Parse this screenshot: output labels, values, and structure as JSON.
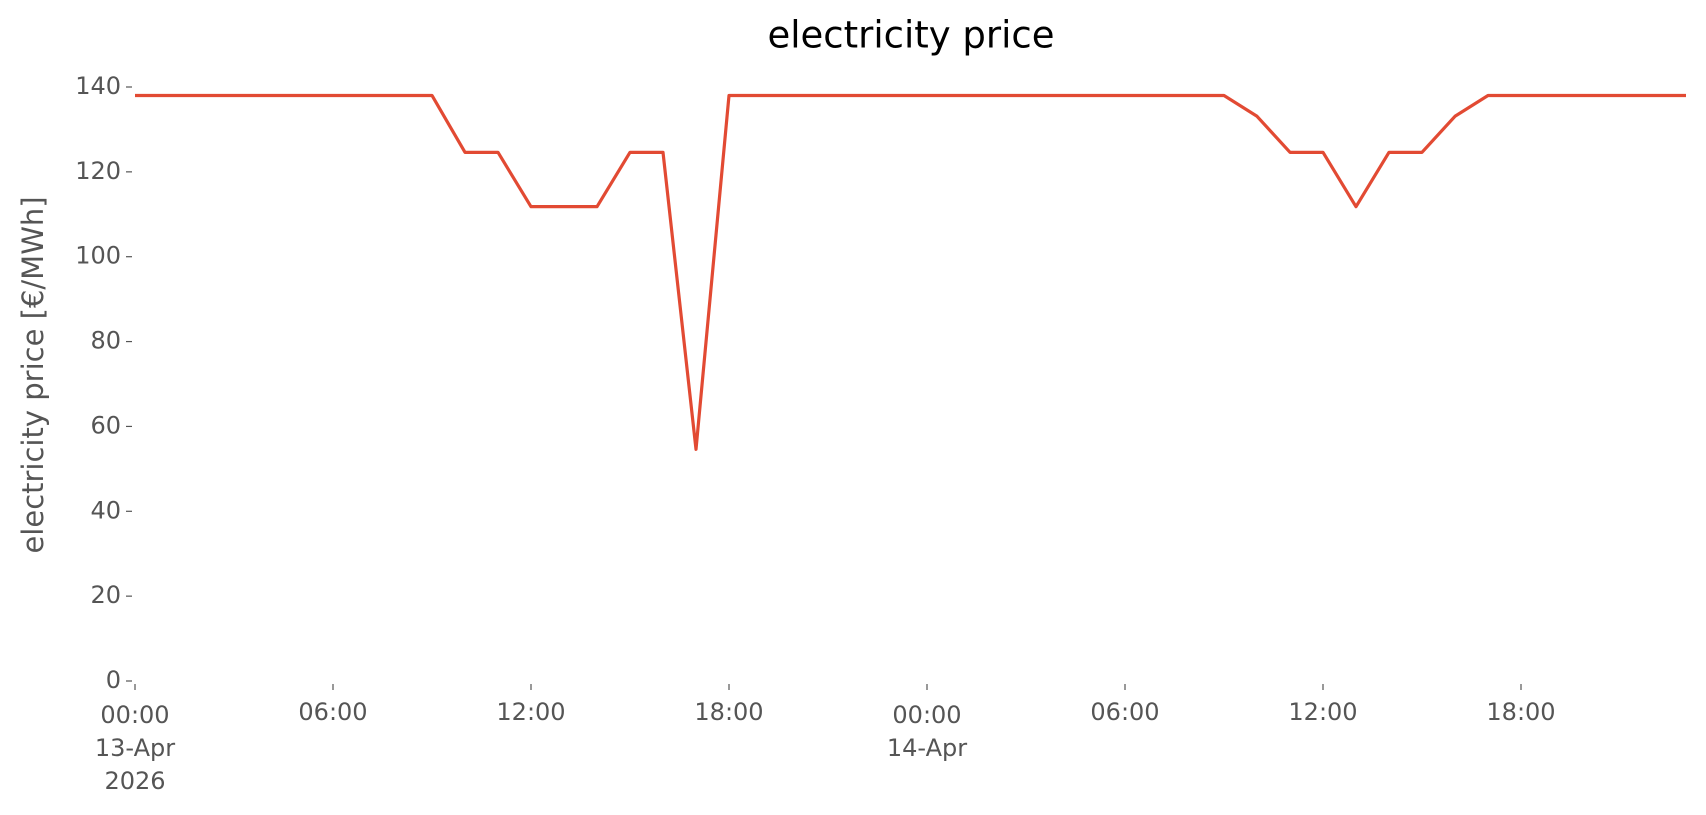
{
  "chart_data": {
    "type": "line",
    "title": "electricity price",
    "y_label": "electricity price [€/MWh]",
    "x": [
      "2026-04-13 00:00",
      "2026-04-13 01:00",
      "2026-04-13 02:00",
      "2026-04-13 03:00",
      "2026-04-13 04:00",
      "2026-04-13 05:00",
      "2026-04-13 06:00",
      "2026-04-13 07:00",
      "2026-04-13 08:00",
      "2026-04-13 09:00",
      "2026-04-13 10:00",
      "2026-04-13 11:00",
      "2026-04-13 12:00",
      "2026-04-13 13:00",
      "2026-04-13 14:00",
      "2026-04-13 15:00",
      "2026-04-13 16:00",
      "2026-04-13 17:00",
      "2026-04-13 18:00",
      "2026-04-13 19:00",
      "2026-04-13 20:00",
      "2026-04-13 21:00",
      "2026-04-13 22:00",
      "2026-04-13 23:00",
      "2026-04-14 00:00",
      "2026-04-14 01:00",
      "2026-04-14 02:00",
      "2026-04-14 03:00",
      "2026-04-14 04:00",
      "2026-04-14 05:00",
      "2026-04-14 06:00",
      "2026-04-14 07:00",
      "2026-04-14 08:00",
      "2026-04-14 09:00",
      "2026-04-14 10:00",
      "2026-04-14 11:00",
      "2026-04-14 12:00",
      "2026-04-14 13:00",
      "2026-04-14 14:00",
      "2026-04-14 15:00",
      "2026-04-14 16:00",
      "2026-04-14 17:00",
      "2026-04-14 18:00",
      "2026-04-14 19:00",
      "2026-04-14 20:00",
      "2026-04-14 21:00",
      "2026-04-14 22:00",
      "2026-04-14 23:00"
    ],
    "series": [
      {
        "color": "#e24a33",
        "values": [
          138,
          138,
          138,
          138,
          138,
          138,
          138,
          138,
          138,
          138,
          124.6,
          124.6,
          111.8,
          111.8,
          111.8,
          124.6,
          124.6,
          54.6,
          138,
          138,
          138,
          138,
          138,
          138,
          138,
          138,
          138,
          138,
          138,
          138,
          138,
          138,
          138,
          138,
          133.1,
          124.6,
          124.6,
          111.8,
          124.6,
          124.6,
          133.1,
          138,
          138,
          138,
          138,
          138,
          138,
          138
        ]
      }
    ],
    "xlim": [
      "2026-04-13 00:00",
      "2026-04-14 23:00"
    ],
    "xticks": [
      {
        "value": "2026-04-13 00:00",
        "label": [
          "00:00",
          "13-Apr",
          "2026"
        ]
      },
      {
        "value": "2026-04-13 06:00",
        "label": [
          "06:00"
        ]
      },
      {
        "value": "2026-04-13 12:00",
        "label": [
          "12:00"
        ]
      },
      {
        "value": "2026-04-13 18:00",
        "label": [
          "18:00"
        ]
      },
      {
        "value": "2026-04-14 00:00",
        "label": [
          "00:00",
          "14-Apr"
        ]
      },
      {
        "value": "2026-04-14 06:00",
        "label": [
          "06:00"
        ]
      },
      {
        "value": "2026-04-14 12:00",
        "label": [
          "12:00"
        ]
      },
      {
        "value": "2026-04-14 18:00",
        "label": [
          "18:00"
        ]
      }
    ],
    "ylim": [
      0,
      140
    ],
    "yticks": [
      0,
      20,
      40,
      60,
      80,
      100,
      120,
      140
    ],
    "grid": false
  }
}
